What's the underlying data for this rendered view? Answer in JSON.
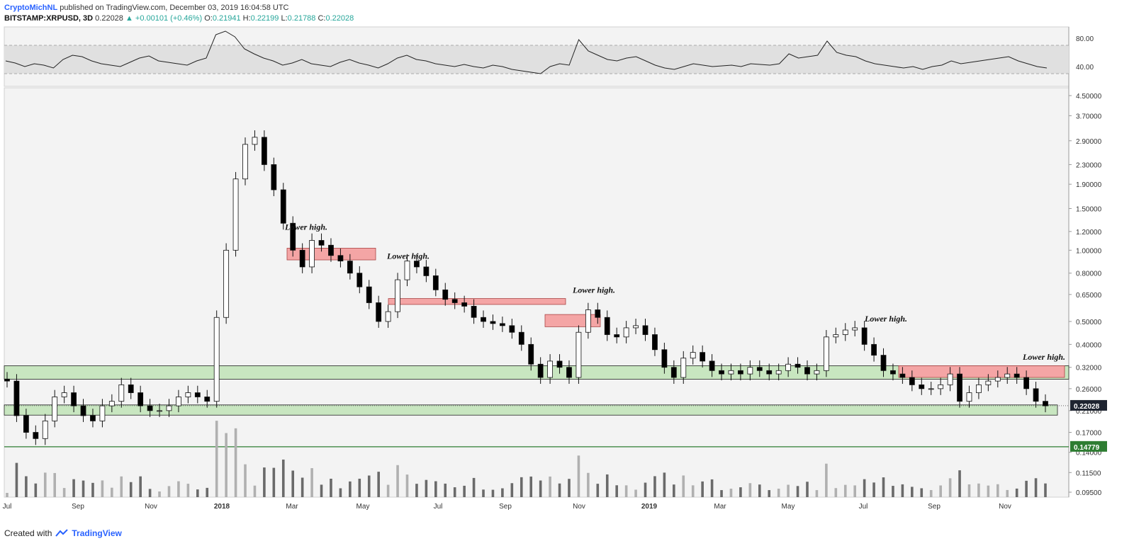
{
  "header": {
    "author": "CryptoMichNL",
    "published": "published on TradingView.com, December 03, 2019 16:04:58 UTC",
    "symbol": "BITSTAMP:XRPUSD, 3D",
    "last": "0.22028",
    "change": "▲ +0.00101 (+0.46%)",
    "o_label": "O:",
    "o": "0.21941",
    "h_label": "H:",
    "h": "0.22199",
    "l_label": "L:",
    "l": "0.21788",
    "c_label": "C:",
    "c": "0.22028"
  },
  "footer": {
    "created": "Created with",
    "brand": "TradingView"
  },
  "colors": {
    "bull": "#ffffff",
    "bear": "#000000",
    "resistance": "#f4a5a5",
    "support": "#c8e6c0",
    "level": "#2e7d32",
    "price_tag": "#1e2430"
  },
  "chart_data": {
    "type": "candlestick",
    "price_scale": "log",
    "y_ticks": [
      "4.50000",
      "3.70000",
      "2.90000",
      "2.30000",
      "1.90000",
      "1.50000",
      "1.20000",
      "1.00000",
      "0.80000",
      "0.65000",
      "0.50000",
      "0.40000",
      "0.32000",
      "0.26000",
      "0.21000",
      "0.17000",
      "0.14000",
      "0.11500",
      "0.09500"
    ],
    "x_ticks": [
      "Jul",
      "Sep",
      "Nov",
      "2018",
      "Mar",
      "May",
      "Jul",
      "Sep",
      "Nov",
      "2019",
      "Mar",
      "May",
      "Jul",
      "Sep",
      "Nov"
    ],
    "last_price": "0.22028",
    "support_level": "0.14779",
    "rsi": {
      "ticks": [
        "80.00",
        "40.00"
      ],
      "band": [
        30,
        70
      ]
    },
    "annotations": [
      "Lower high.",
      "Lower high.",
      "Lower high.",
      "Lower high.",
      "Lower high."
    ],
    "ohlc_path": [
      0.28,
      0.2,
      0.17,
      0.16,
      0.19,
      0.24,
      0.25,
      0.22,
      0.2,
      0.19,
      0.22,
      0.23,
      0.27,
      0.25,
      0.22,
      0.21,
      0.21,
      0.22,
      0.24,
      0.25,
      0.24,
      0.23,
      0.52,
      1.0,
      2.0,
      2.8,
      3.0,
      2.3,
      1.8,
      1.3,
      1.0,
      0.85,
      1.1,
      1.05,
      0.95,
      0.9,
      0.8,
      0.7,
      0.6,
      0.5,
      0.55,
      0.75,
      0.9,
      0.85,
      0.78,
      0.68,
      0.62,
      0.6,
      0.58,
      0.52,
      0.5,
      0.49,
      0.48,
      0.45,
      0.4,
      0.33,
      0.29,
      0.34,
      0.32,
      0.29,
      0.45,
      0.56,
      0.52,
      0.44,
      0.43,
      0.47,
      0.48,
      0.44,
      0.38,
      0.32,
      0.29,
      0.35,
      0.37,
      0.34,
      0.31,
      0.3,
      0.31,
      0.3,
      0.32,
      0.31,
      0.3,
      0.31,
      0.33,
      0.32,
      0.3,
      0.31,
      0.43,
      0.44,
      0.46,
      0.47,
      0.4,
      0.36,
      0.31,
      0.3,
      0.29,
      0.27,
      0.26,
      0.26,
      0.27,
      0.3,
      0.23,
      0.25,
      0.27,
      0.28,
      0.29,
      0.3,
      0.29,
      0.26,
      0.23,
      0.22
    ],
    "rsi_values": [
      48,
      45,
      40,
      44,
      42,
      38,
      50,
      56,
      54,
      48,
      44,
      42,
      40,
      46,
      52,
      55,
      48,
      46,
      44,
      42,
      48,
      52,
      85,
      90,
      82,
      65,
      58,
      52,
      48,
      42,
      45,
      50,
      44,
      42,
      40,
      46,
      50,
      45,
      42,
      38,
      44,
      52,
      56,
      50,
      48,
      44,
      42,
      40,
      43,
      40,
      38,
      42,
      40,
      36,
      34,
      32,
      30,
      40,
      44,
      42,
      78,
      62,
      56,
      50,
      48,
      52,
      54,
      48,
      42,
      38,
      36,
      40,
      44,
      42,
      40,
      41,
      42,
      40,
      44,
      43,
      42,
      44,
      58,
      52,
      54,
      56,
      76,
      60,
      56,
      54,
      48,
      44,
      42,
      40,
      38,
      40,
      36,
      40,
      42,
      48,
      44,
      46,
      48,
      50,
      52,
      54,
      48,
      44,
      40,
      38
    ]
  }
}
